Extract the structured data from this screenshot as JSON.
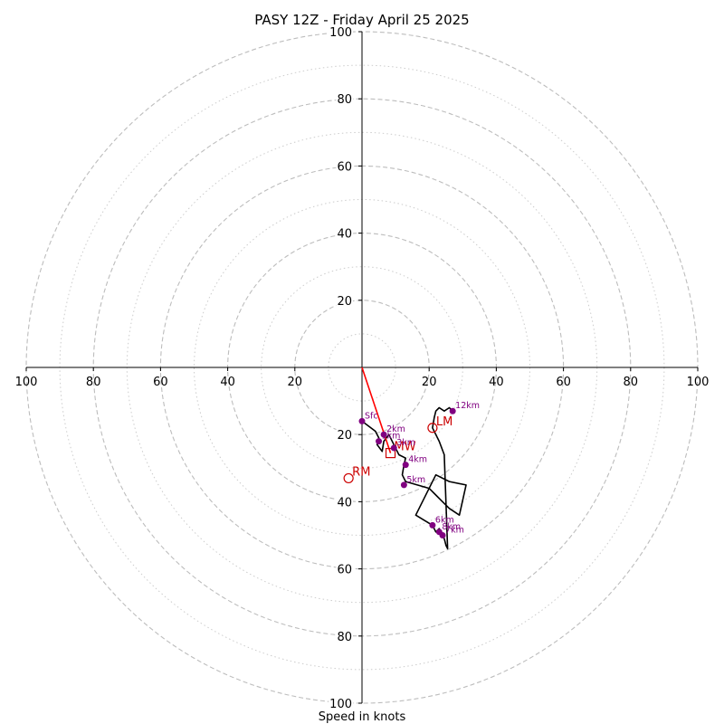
{
  "chart_data": {
    "type": "hodograph",
    "title": "PASY 12Z - Friday April 25 2025",
    "xlabel": "Speed in knots",
    "ylabel": "",
    "xlim": [
      -100,
      100
    ],
    "ylim": [
      -100,
      100
    ],
    "grid": true,
    "rings": {
      "major": [
        20,
        40,
        60,
        80,
        100
      ],
      "minor": [
        10,
        30,
        50,
        70,
        90
      ]
    },
    "x_tick_labels": [
      "100",
      "80",
      "60",
      "40",
      "20",
      "20",
      "40",
      "60",
      "80",
      "100"
    ],
    "x_tick_values": [
      -100,
      -80,
      -60,
      -40,
      -20,
      20,
      40,
      60,
      80,
      100
    ],
    "y_tick_labels": [
      "100",
      "80",
      "60",
      "40",
      "20",
      "20",
      "40",
      "60",
      "80",
      "100"
    ],
    "y_tick_values": [
      100,
      80,
      60,
      40,
      20,
      -20,
      -40,
      -60,
      -80,
      -100
    ],
    "trace_color": "#000000",
    "marker_color": "#800080",
    "storm_color": "#cc0000",
    "wind_trace": {
      "u": [
        0,
        4,
        5,
        4.5,
        6,
        6.5,
        8,
        9.5,
        11,
        13,
        12.5,
        12,
        13,
        20,
        22,
        24,
        26,
        29,
        31,
        26,
        22,
        16,
        21,
        22,
        23,
        24,
        24.5,
        25,
        25.5,
        24.5,
        23,
        21,
        21.5,
        22,
        23,
        24.5,
        26,
        27.5
      ],
      "v": [
        -16,
        -19,
        -21,
        -23,
        -25,
        -22,
        -20,
        -23,
        -26,
        -27,
        -29,
        -32,
        -34,
        -36,
        -38,
        -40,
        -42,
        -44,
        -35,
        -34,
        -32,
        -44,
        -47,
        -49,
        -48,
        -50,
        -51,
        -53,
        -54,
        -26,
        -22,
        -18,
        -15,
        -13,
        -12,
        -13,
        -12,
        -13.5
      ]
    },
    "height_markers": [
      {
        "label": "Sfc",
        "u": 0,
        "v": -16
      },
      {
        "label": "1km",
        "u": 5,
        "v": -22
      },
      {
        "label": "2km",
        "u": 6.5,
        "v": -20
      },
      {
        "label": "3km",
        "u": 9.5,
        "v": -24
      },
      {
        "label": "4km",
        "u": 13,
        "v": -29
      },
      {
        "label": "5km",
        "u": 12.5,
        "v": -35
      },
      {
        "label": "6km",
        "u": 21,
        "v": -47
      },
      {
        "label": "7km",
        "u": 24,
        "v": -50
      },
      {
        "label": "8km",
        "u": 23,
        "v": -49
      },
      {
        "label": "12km",
        "u": 27,
        "v": -13
      }
    ],
    "storm_motions": [
      {
        "label": "LM",
        "u": 21,
        "v": -18,
        "shape": "circle"
      },
      {
        "label": "RM",
        "u": -4,
        "v": -33,
        "shape": "circle"
      },
      {
        "label": "MW",
        "u": 8.5,
        "v": -25.5,
        "shape": "square"
      }
    ],
    "shear_vector": {
      "u0": 0,
      "v0": 0,
      "u1": 8.5,
      "v1": -25.5
    }
  }
}
